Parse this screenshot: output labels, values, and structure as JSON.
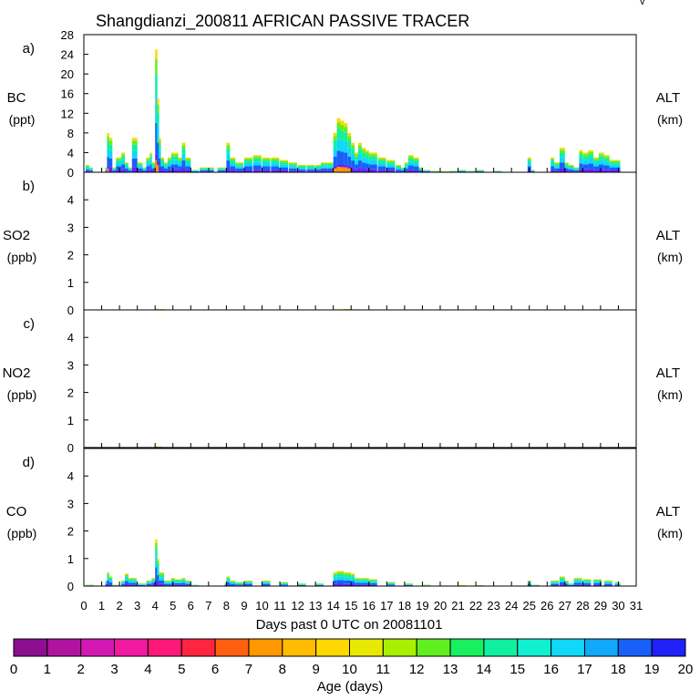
{
  "chart_data": {
    "type": "area",
    "title": "Shangdianzi_200811 AFRICAN PASSIVE TRACER",
    "corner_mark": "v",
    "xlabel": "Days past 0 UTC on 20081101",
    "xlim": [
      0,
      31
    ],
    "x_ticks": [
      "0",
      "1",
      "2",
      "3",
      "4",
      "5",
      "6",
      "7",
      "8",
      "9",
      "10",
      "11",
      "12",
      "13",
      "14",
      "15",
      "16",
      "17",
      "18",
      "19",
      "20",
      "21",
      "22",
      "23",
      "24",
      "25",
      "26",
      "27",
      "28",
      "29",
      "30",
      "31"
    ],
    "panels": [
      {
        "id": "a",
        "tag": "a)",
        "species": "BC",
        "unit": "(ppt)",
        "right_label": "ALT",
        "right_unit": "(km)",
        "ylim": [
          0,
          28
        ],
        "y_ticks": [
          "0",
          "4",
          "8",
          "12",
          "16",
          "20",
          "24",
          "28"
        ],
        "total_series": {
          "x": [
            0.1,
            0.3,
            0.5,
            1.2,
            1.3,
            1.4,
            1.6,
            1.8,
            2.1,
            2.3,
            2.5,
            2.7,
            3.0,
            3.3,
            3.5,
            3.7,
            3.8,
            3.9,
            4.0,
            4.1,
            4.2,
            4.3,
            4.5,
            4.7,
            4.9,
            5.1,
            5.3,
            5.5,
            5.7,
            6.0,
            6.5,
            7.0,
            7.3,
            7.5,
            7.9,
            8.0,
            8.2,
            8.5,
            9.0,
            9.5,
            10.0,
            10.5,
            11.0,
            11.5,
            12.0,
            12.5,
            13.0,
            13.3,
            13.7,
            14.0,
            14.2,
            14.4,
            14.6,
            14.8,
            15.0,
            15.2,
            15.4,
            15.6,
            15.8,
            16.0,
            16.5,
            17.0,
            17.5,
            17.8,
            18.0,
            18.2,
            18.5,
            18.8,
            19.0,
            19.5,
            20.0,
            20.5,
            21.0,
            21.5,
            22.0,
            23.0,
            24.0,
            24.5,
            24.9,
            25.1,
            25.3,
            25.8,
            26.2,
            26.4,
            26.7,
            27.0,
            27.2,
            27.5,
            27.8,
            28.0,
            28.3,
            28.6,
            28.9,
            29.2,
            29.5,
            29.8
          ],
          "values": [
            1.5,
            1,
            0,
            1,
            8,
            7,
            1,
            3,
            4,
            2,
            1,
            7,
            2,
            1,
            3,
            4,
            2,
            2,
            25,
            15,
            7,
            3,
            2,
            3,
            4,
            4,
            3,
            6,
            3,
            0.5,
            1,
            1,
            0,
            1,
            1,
            6,
            3,
            2,
            3,
            3.5,
            3,
            3,
            2.5,
            2,
            1.5,
            1.5,
            1.5,
            2,
            2,
            8,
            11,
            10.5,
            10,
            8,
            6,
            4,
            6,
            5,
            4.5,
            4,
            3,
            2.5,
            1.5,
            1,
            2,
            3.5,
            3,
            1,
            0.5,
            0.3,
            0.2,
            0.3,
            0.5,
            0.3,
            0.5,
            0.3,
            0,
            0,
            3,
            0.5,
            0,
            0,
            3,
            2,
            5,
            2,
            1.5,
            1,
            4.5,
            4,
            4.5,
            3,
            4,
            3.5,
            2.5,
            2.5
          ]
        }
      },
      {
        "id": "b",
        "tag": "b)",
        "species": "SO2",
        "unit": "(ppb)",
        "right_label": "ALT",
        "right_unit": "(km)",
        "ylim": [
          0,
          5
        ],
        "y_ticks": [
          "0",
          "1",
          "2",
          "3",
          "4"
        ],
        "total_series": {
          "x": [
            4.0,
            4.1,
            14.0,
            14.5,
            15.0
          ],
          "values": [
            0.04,
            0.03,
            0.02,
            0.03,
            0.02
          ]
        }
      },
      {
        "id": "c",
        "tag": "c)",
        "species": "NO2",
        "unit": "(ppb)",
        "right_label": "ALT",
        "right_unit": "(km)",
        "ylim": [
          0,
          5
        ],
        "y_ticks": [
          "0",
          "1",
          "2",
          "3",
          "4"
        ],
        "total_series": {
          "x": [
            4.0,
            4.1
          ],
          "values": [
            0.04,
            0.03
          ]
        }
      },
      {
        "id": "d",
        "tag": "d)",
        "species": "CO",
        "unit": "(ppb)",
        "right_label": "ALT",
        "right_unit": "(km)",
        "ylim": [
          0,
          5
        ],
        "y_ticks": [
          "0",
          "1",
          "2",
          "3",
          "4"
        ],
        "total_series": {
          "x": [
            0.1,
            1.2,
            1.3,
            1.4,
            1.6,
            2.1,
            2.3,
            2.5,
            3.0,
            3.5,
            3.8,
            4.0,
            4.1,
            4.2,
            4.5,
            4.9,
            5.1,
            5.5,
            5.7,
            6.0,
            7.9,
            8.0,
            8.2,
            8.5,
            9.0,
            10.0,
            11.0,
            12.0,
            13.0,
            14.0,
            14.2,
            14.6,
            15.0,
            15.2,
            15.6,
            16.0,
            17.0,
            18.0,
            19.0,
            20.0,
            21.0,
            22.0,
            24.9,
            25.1,
            26.2,
            26.7,
            27.0,
            27.2,
            27.5,
            28.0,
            28.6,
            29.2,
            29.8
          ],
          "values": [
            0.05,
            0.2,
            0.5,
            0.35,
            0.05,
            0.2,
            0.45,
            0.3,
            0.1,
            0.2,
            0.3,
            1.7,
            1.0,
            0.5,
            0.2,
            0.3,
            0.25,
            0.3,
            0.2,
            0.05,
            0.1,
            0.35,
            0.2,
            0.15,
            0.2,
            0.2,
            0.15,
            0.1,
            0.1,
            0.5,
            0.55,
            0.5,
            0.45,
            0.3,
            0.3,
            0.25,
            0.15,
            0.1,
            0.05,
            0.02,
            0.03,
            0.03,
            0.2,
            0.05,
            0.2,
            0.35,
            0.2,
            0.1,
            0.3,
            0.25,
            0.25,
            0.2,
            0.15
          ]
        }
      }
    ],
    "colorbar": {
      "label": "Age (days)",
      "ticks": [
        "0",
        "1",
        "2",
        "3",
        "4",
        "5",
        "6",
        "7",
        "8",
        "9",
        "10",
        "11",
        "12",
        "13",
        "14",
        "15",
        "16",
        "17",
        "18",
        "19",
        "20"
      ],
      "colors": [
        "#8b0f8f",
        "#b0139f",
        "#d418b4",
        "#f019a0",
        "#ff1878",
        "#ff2440",
        "#ff6010",
        "#ff9800",
        "#ffbc00",
        "#ffd800",
        "#e8e800",
        "#a8f000",
        "#60f020",
        "#18f060",
        "#10f0a0",
        "#10f0d0",
        "#10d8f8",
        "#10a8f8",
        "#1860f8",
        "#2020f8",
        "#6a20f8"
      ]
    }
  }
}
